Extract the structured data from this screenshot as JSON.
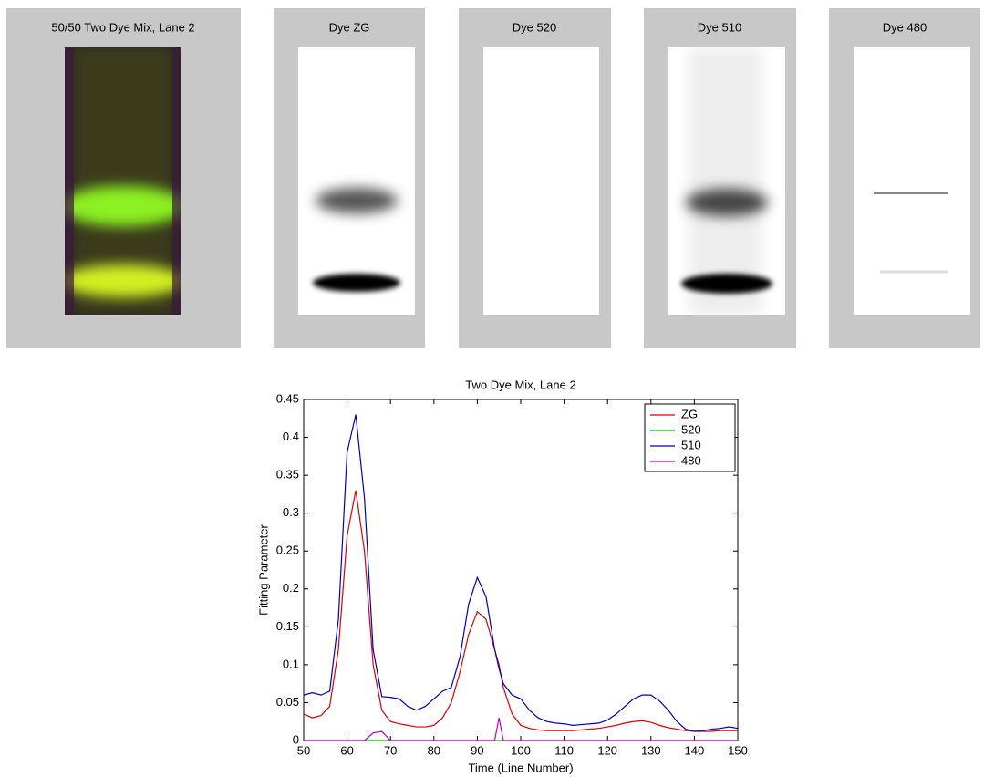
{
  "panels": [
    {
      "title": "50/50 Two Dye Mix, Lane 2"
    },
    {
      "title": "Dye ZG"
    },
    {
      "title": "Dye 520"
    },
    {
      "title": "Dye 510"
    },
    {
      "title": "Dye 480"
    }
  ],
  "chart_data": {
    "type": "line",
    "title": "Two Dye Mix, Lane 2",
    "x_label": "Time (Line Number)",
    "y_label": "Fitting Parameter",
    "x": [
      50,
      52,
      54,
      56,
      58,
      60,
      62,
      64,
      66,
      68,
      70,
      72,
      74,
      76,
      78,
      80,
      82,
      84,
      86,
      88,
      90,
      92,
      94,
      95,
      96,
      98,
      100,
      102,
      104,
      106,
      108,
      110,
      112,
      114,
      116,
      118,
      120,
      122,
      124,
      126,
      128,
      130,
      132,
      134,
      136,
      138,
      140,
      142,
      144,
      146,
      148,
      150
    ],
    "series": [
      {
        "name": "ZG",
        "color": "#e00000",
        "values": [
          0.035,
          0.03,
          0.033,
          0.045,
          0.12,
          0.27,
          0.33,
          0.25,
          0.1,
          0.04,
          0.025,
          0.022,
          0.02,
          0.018,
          0.018,
          0.02,
          0.03,
          0.05,
          0.09,
          0.14,
          0.17,
          0.16,
          0.12,
          0.1,
          0.07,
          0.035,
          0.02,
          0.016,
          0.014,
          0.013,
          0.013,
          0.013,
          0.013,
          0.014,
          0.015,
          0.016,
          0.018,
          0.02,
          0.023,
          0.025,
          0.026,
          0.024,
          0.02,
          0.017,
          0.015,
          0.013,
          0.012,
          0.012,
          0.012,
          0.013,
          0.013,
          0.013
        ]
      },
      {
        "name": "520",
        "color": "#00c000",
        "values": [
          0,
          0,
          0,
          0,
          0,
          0,
          0,
          0,
          0,
          0,
          0,
          0,
          0,
          0,
          0,
          0,
          0,
          0,
          0,
          0,
          0,
          0,
          0,
          0,
          0,
          0,
          0,
          0,
          0,
          0,
          0,
          0,
          0,
          0,
          0,
          0,
          0,
          0,
          0,
          0,
          0,
          0,
          0,
          0,
          0,
          0,
          0,
          0,
          0,
          0,
          0,
          0
        ]
      },
      {
        "name": "510",
        "color": "#0000c0",
        "values": [
          0.06,
          0.063,
          0.06,
          0.065,
          0.16,
          0.38,
          0.43,
          0.32,
          0.12,
          0.058,
          0.057,
          0.055,
          0.045,
          0.04,
          0.045,
          0.055,
          0.065,
          0.07,
          0.11,
          0.18,
          0.215,
          0.19,
          0.12,
          0.095,
          0.075,
          0.06,
          0.055,
          0.04,
          0.03,
          0.025,
          0.023,
          0.022,
          0.02,
          0.021,
          0.022,
          0.023,
          0.027,
          0.035,
          0.045,
          0.055,
          0.06,
          0.06,
          0.052,
          0.04,
          0.025,
          0.015,
          0.012,
          0.013,
          0.015,
          0.016,
          0.018,
          0.016
        ]
      },
      {
        "name": "480",
        "color": "#c000c0",
        "values": [
          0,
          0,
          0,
          0,
          0,
          0,
          0,
          0,
          0.01,
          0.012,
          0,
          0,
          0,
          0,
          0,
          0,
          0,
          0,
          0,
          0,
          0,
          0,
          0,
          0.03,
          0,
          0,
          0,
          0,
          0,
          0,
          0,
          0,
          0,
          0,
          0,
          0,
          0,
          0,
          0,
          0,
          0,
          0,
          0,
          0,
          0,
          0,
          0,
          0,
          0,
          0,
          0,
          0
        ]
      }
    ],
    "xlim": [
      50,
      150
    ],
    "xticks": [
      50,
      60,
      70,
      80,
      90,
      100,
      110,
      120,
      130,
      140,
      150
    ],
    "ylim": [
      0,
      0.45
    ],
    "yticks": [
      0,
      0.05,
      0.1,
      0.15,
      0.2,
      0.25,
      0.3,
      0.35,
      0.4,
      0.45
    ],
    "legend": "upper right",
    "grid": false
  }
}
